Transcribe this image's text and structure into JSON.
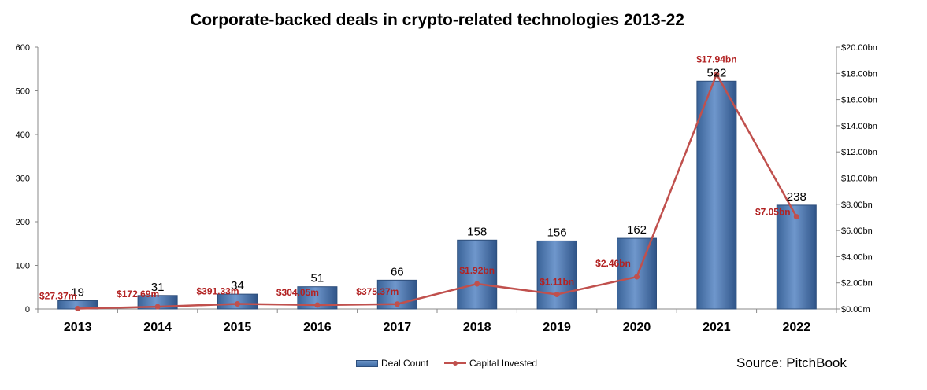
{
  "chart_data": {
    "type": "bar",
    "title": "Corporate-backed deals in crypto-related technologies 2013-22",
    "categories": [
      "2013",
      "2014",
      "2015",
      "2016",
      "2017",
      "2018",
      "2019",
      "2020",
      "2021",
      "2022"
    ],
    "series": [
      {
        "name": "Deal Count",
        "type": "bar",
        "axis": "left",
        "values": [
          19,
          31,
          34,
          51,
          66,
          158,
          156,
          162,
          522,
          238
        ],
        "labels": [
          "19",
          "31",
          "34",
          "51",
          "66",
          "158",
          "156",
          "162",
          "522",
          "238"
        ],
        "color": "#4f81bd"
      },
      {
        "name": "Capital Invested",
        "type": "line",
        "axis": "right",
        "values_bn": [
          0.02737,
          0.17269,
          0.39133,
          0.30405,
          0.37537,
          1.92,
          1.11,
          2.46,
          17.94,
          7.05
        ],
        "labels": [
          "$27.37m",
          "$172.69m",
          "$391.33m",
          "$304.05m",
          "$375.37m",
          "$1.92bn",
          "$1.11bn",
          "$2.46bn",
          "$17.94bn",
          "$7.05bn"
        ],
        "color": "#c0504d"
      }
    ],
    "y_left": {
      "min": 0,
      "max": 600,
      "ticks": [
        "0",
        "100",
        "200",
        "300",
        "400",
        "500",
        "600"
      ]
    },
    "y_right": {
      "min": 0,
      "max": 20,
      "ticks": [
        "$0.00m",
        "$2.00bn",
        "$4.00bn",
        "$6.00bn",
        "$8.00bn",
        "$10.00bn",
        "$12.00bn",
        "$14.00bn",
        "$16.00bn",
        "$18.00bn",
        "$20.00bn"
      ]
    },
    "grid": false,
    "legend_position": "bottom",
    "source": "Source: PitchBook"
  }
}
